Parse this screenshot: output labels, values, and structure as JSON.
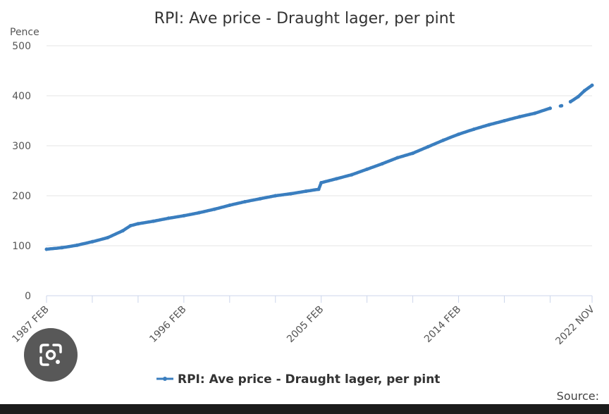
{
  "chart_data": {
    "type": "line",
    "title": "RPI: Ave price - Draught lager, per pint",
    "ylabel": "Pence",
    "ylim": [
      0,
      500
    ],
    "yticks": [
      0,
      100,
      200,
      300,
      400,
      500
    ],
    "xrange": [
      "1987 FEB",
      "2022 NOV"
    ],
    "xtick_labels": [
      "1987 FEB",
      "1996 FEB",
      "2005 FEB",
      "2014 FEB",
      "2022 NOV"
    ],
    "grid": "horizontal",
    "legend_position": "bottom",
    "series": [
      {
        "name": "RPI: Ave price - Draught lager, per pint",
        "color": "#3a7ebf",
        "points": [
          [
            "1987-02",
            93
          ],
          [
            "1988-02",
            96
          ],
          [
            "1989-02",
            101
          ],
          [
            "1990-02",
            108
          ],
          [
            "1991-02",
            116
          ],
          [
            "1992-02",
            130
          ],
          [
            "1992-08",
            140
          ],
          [
            "1993-02",
            144
          ],
          [
            "1994-02",
            149
          ],
          [
            "1995-02",
            155
          ],
          [
            "1996-02",
            160
          ],
          [
            "1997-02",
            166
          ],
          [
            "1998-02",
            173
          ],
          [
            "1999-02",
            181
          ],
          [
            "2000-02",
            188
          ],
          [
            "2001-02",
            194
          ],
          [
            "2002-02",
            200
          ],
          [
            "2003-02",
            204
          ],
          [
            "2004-02",
            209
          ],
          [
            "2004-12",
            213
          ],
          [
            "2005-02",
            226
          ],
          [
            "2006-02",
            234
          ],
          [
            "2007-02",
            242
          ],
          [
            "2008-02",
            253
          ],
          [
            "2009-02",
            264
          ],
          [
            "2010-02",
            276
          ],
          [
            "2011-02",
            285
          ],
          [
            "2012-02",
            298
          ],
          [
            "2013-02",
            311
          ],
          [
            "2014-02",
            323
          ],
          [
            "2015-02",
            333
          ],
          [
            "2016-02",
            342
          ],
          [
            "2017-02",
            350
          ],
          [
            "2018-02",
            358
          ],
          [
            "2019-02",
            365
          ],
          [
            "2020-02",
            375
          ],
          [
            "2020-11",
            380
          ],
          [
            "2021-06",
            388
          ],
          [
            "2021-12",
            398
          ],
          [
            "2022-05",
            410
          ],
          [
            "2022-11",
            421
          ]
        ],
        "gaps": [
          [
            "2020-03",
            "2020-09"
          ],
          [
            "2020-12",
            "2021-05"
          ]
        ]
      }
    ]
  },
  "footer": {
    "source_label": "Source:"
  },
  "icons": {
    "lens": "google-lens-icon"
  }
}
